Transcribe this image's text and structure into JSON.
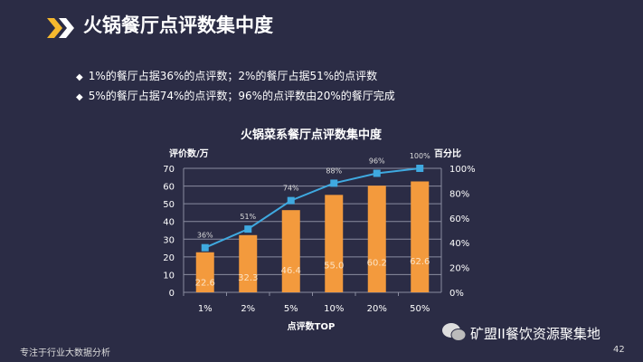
{
  "header": {
    "title": "火锅餐厅点评数集中度",
    "icon": "double-chevron-icon"
  },
  "bullets": [
    "1%的餐厅占据36%的点评数；2%的餐厅占据51%的点评数",
    "5%的餐厅占据74%的点评数；96%的点评数由20%的餐厅完成"
  ],
  "footer": {
    "left": "专注于行业大数据分析",
    "page": "42",
    "watermark": "矿盟II餐饮资源聚集地"
  },
  "chart_data": {
    "type": "bar+line",
    "title": "火锅菜系餐厅点评数集中度",
    "xlabel": "点评数TOP",
    "ylabel": "评价数/万",
    "y2label": "百分比",
    "categories": [
      "1%",
      "2%",
      "5%",
      "10%",
      "20%",
      "50%"
    ],
    "series": [
      {
        "type": "bar",
        "axis": "left",
        "values": [
          22.6,
          32.3,
          46.4,
          55.0,
          60.2,
          62.6
        ],
        "labels": [
          "22.6",
          "32.3",
          "46.4",
          "55.0",
          "60.2",
          "62.6"
        ],
        "color": "#f39a3d"
      },
      {
        "type": "line",
        "axis": "right",
        "values": [
          36,
          51,
          74,
          88,
          96,
          100
        ],
        "labels": [
          "36%",
          "51%",
          "74%",
          "88%",
          "96%",
          "100%"
        ],
        "color": "#3fa9e0"
      }
    ],
    "ylim": [
      0,
      70
    ],
    "yticks": [
      "0",
      "10",
      "20",
      "30",
      "40",
      "50",
      "60",
      "70"
    ],
    "y2lim": [
      0,
      100
    ],
    "y2ticks": [
      "0%",
      "20%",
      "40%",
      "60%",
      "80%",
      "100%"
    ],
    "grid": true
  }
}
